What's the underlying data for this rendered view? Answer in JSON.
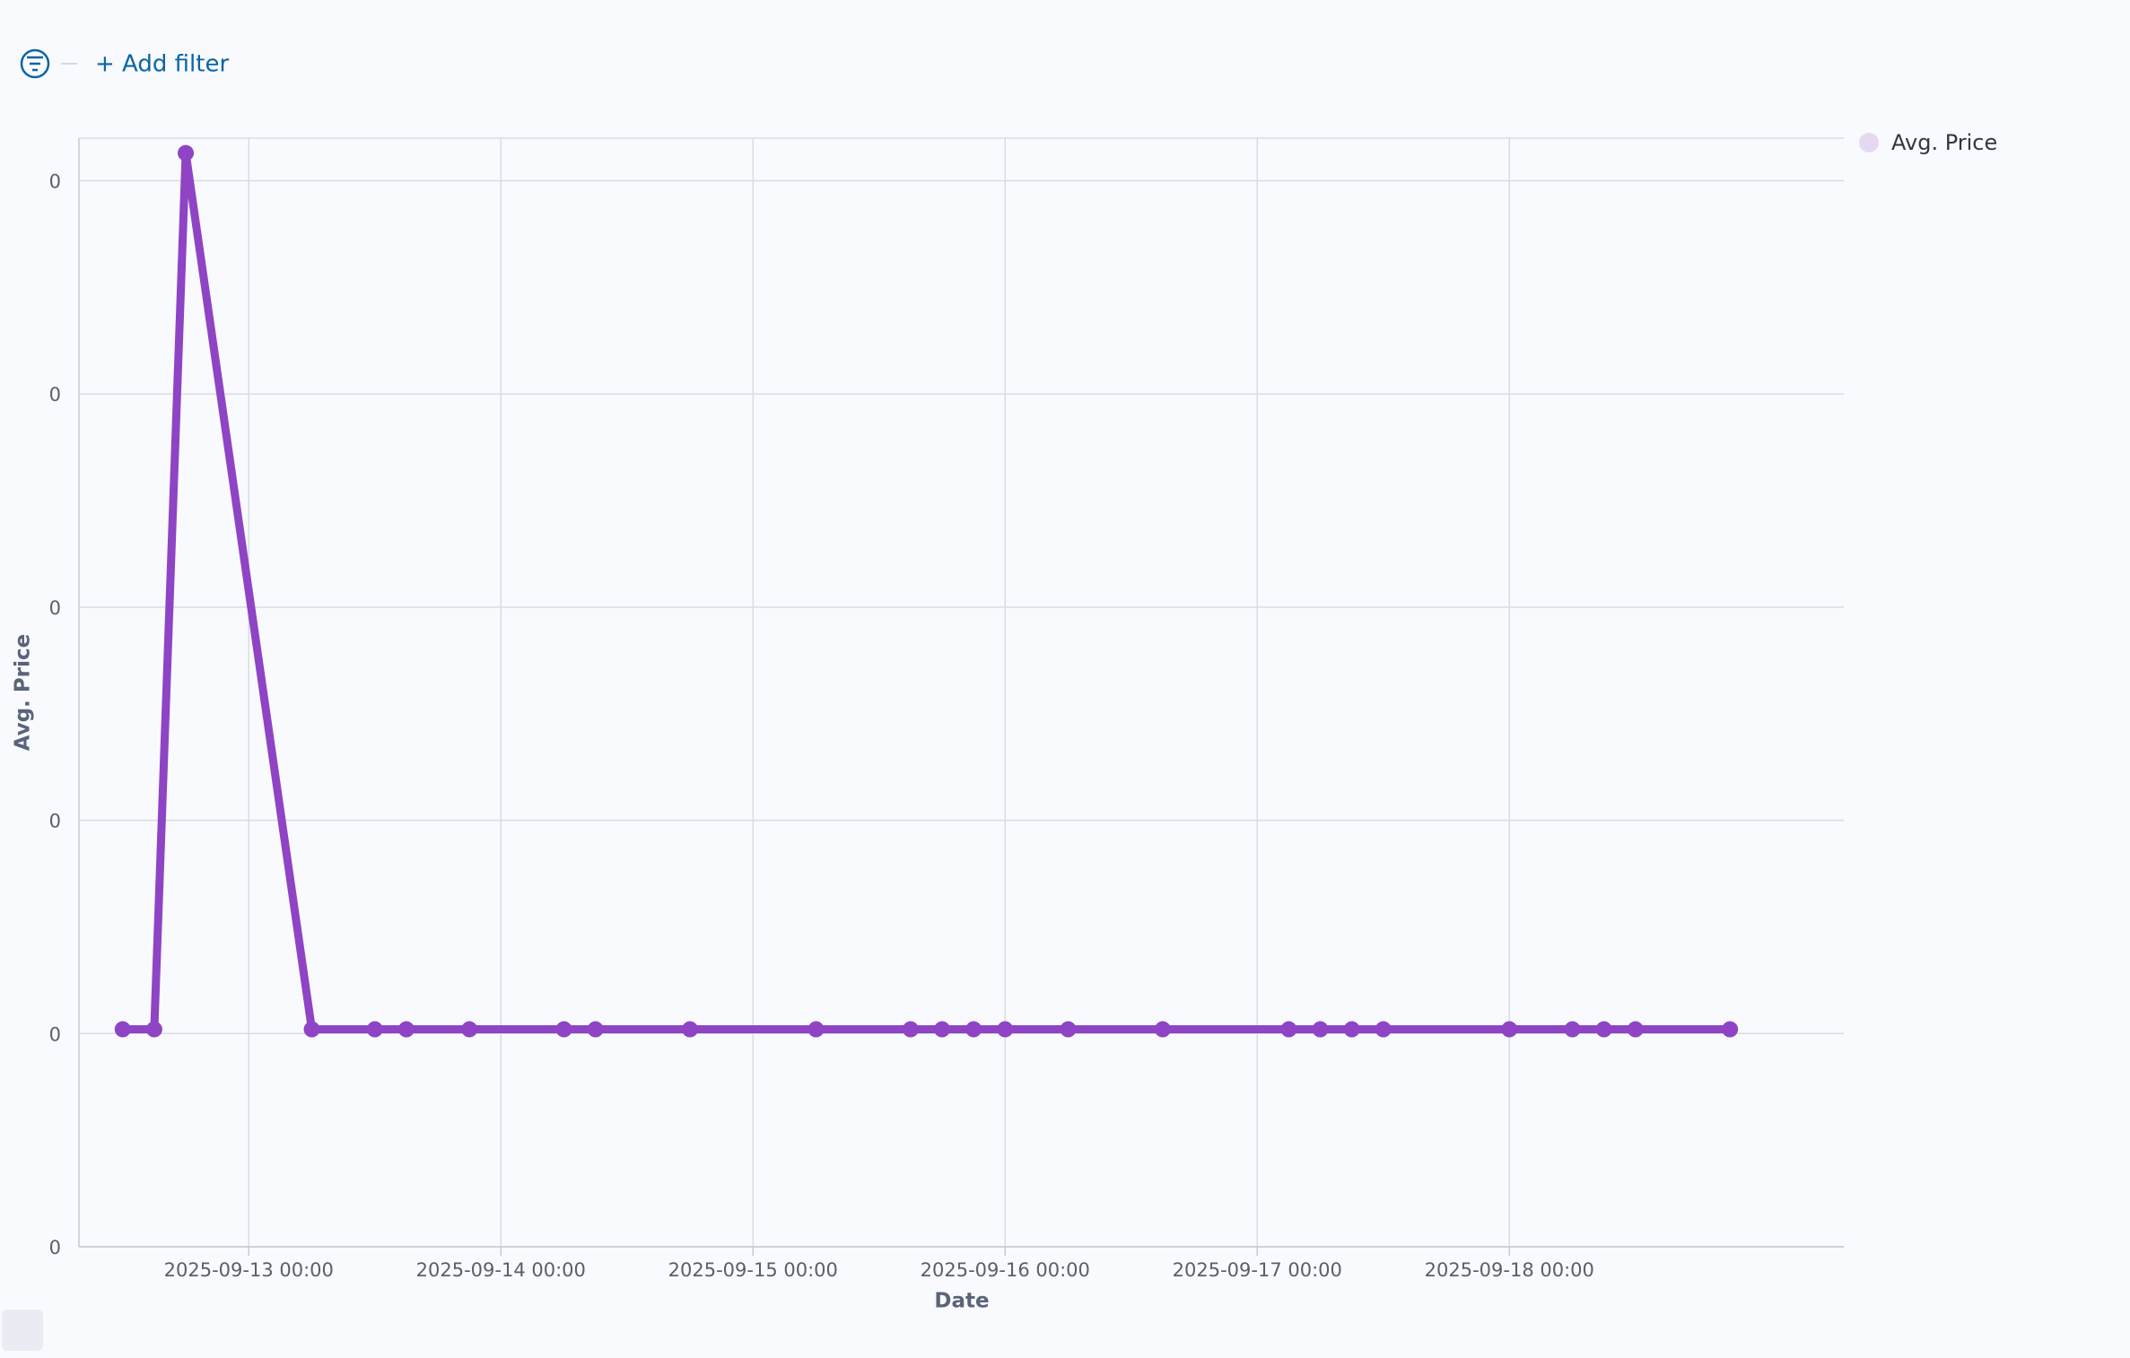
{
  "filter_bar": {
    "add_filter": "+ Add filter"
  },
  "chart_data": {
    "type": "line",
    "x_label": "Date",
    "y_label": "Avg. Price",
    "x": [
      "2025-09-12 12:00",
      "2025-09-12 15:00",
      "2025-09-12 18:00",
      "2025-09-13 06:00",
      "2025-09-13 12:00",
      "2025-09-13 15:00",
      "2025-09-13 21:00",
      "2025-09-14 06:00",
      "2025-09-14 09:00",
      "2025-09-14 18:00",
      "2025-09-15 06:00",
      "2025-09-15 15:00",
      "2025-09-15 18:00",
      "2025-09-15 21:00",
      "2025-09-16 00:00",
      "2025-09-16 06:00",
      "2025-09-16 15:00",
      "2025-09-17 03:00",
      "2025-09-17 06:00",
      "2025-09-17 09:00",
      "2025-09-17 12:00",
      "2025-09-18 00:00",
      "2025-09-18 06:00",
      "2025-09-18 09:00",
      "2025-09-18 12:00",
      "2025-09-18 21:00"
    ],
    "series": [
      {
        "name": "Avg. Price",
        "color": "#8e44c4",
        "values": [
          0.00102,
          0.00102,
          0.00513,
          0.00102,
          0.00102,
          0.00102,
          0.00102,
          0.00102,
          0.00102,
          0.00102,
          0.00102,
          0.00102,
          0.00102,
          0.00102,
          0.00102,
          0.00102,
          0.00102,
          0.00102,
          0.00102,
          0.00102,
          0.00102,
          0.00102,
          0.00102,
          0.00102,
          0.00102,
          0.00102
        ]
      }
    ],
    "xlim": [
      "2025-09-12 07:50",
      "2025-09-19 07:50"
    ],
    "xticks": [
      "2025-09-13 00:00",
      "2025-09-14 00:00",
      "2025-09-15 00:00",
      "2025-09-16 00:00",
      "2025-09-17 00:00",
      "2025-09-18 00:00"
    ],
    "ylim": [
      0,
      0.0052
    ],
    "yticks": [
      {
        "value": 0,
        "label": "0"
      },
      {
        "value": 0.001,
        "label": "0"
      },
      {
        "value": 0.002,
        "label": "0"
      },
      {
        "value": 0.003,
        "label": "0"
      },
      {
        "value": 0.004,
        "label": "0"
      },
      {
        "value": 0.005,
        "label": "0"
      }
    ],
    "grid": true,
    "legend": "top-right"
  }
}
